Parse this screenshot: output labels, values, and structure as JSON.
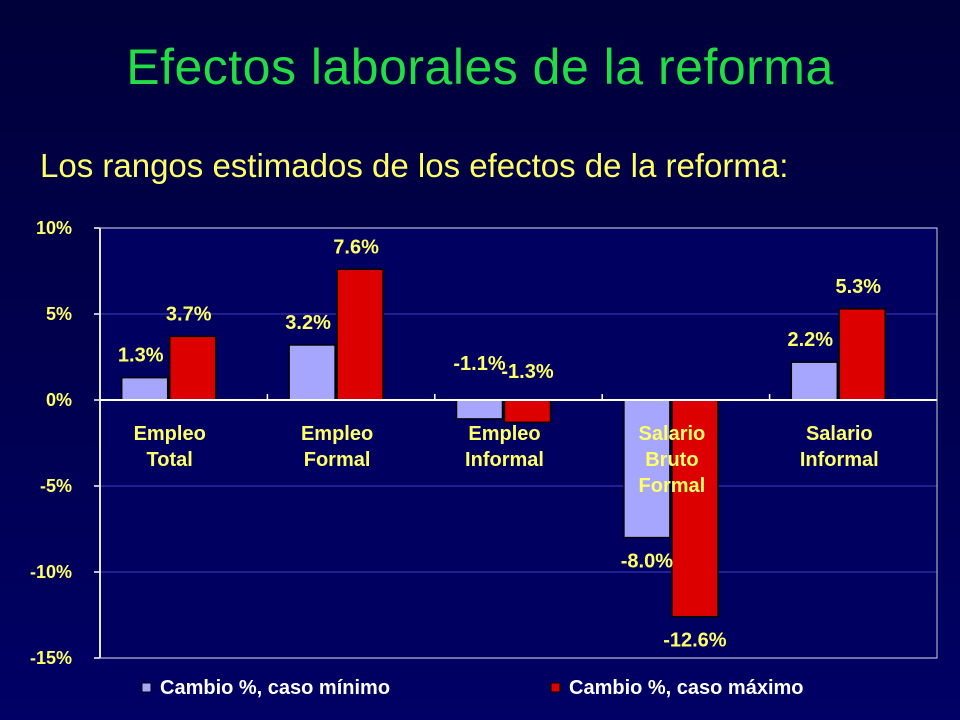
{
  "slide": {
    "title": "Efectos laborales de la reforma",
    "subtitle": "Los rangos estimados de los efectos de la reforma:"
  },
  "chart_data": {
    "type": "bar",
    "categories": [
      [
        "Empleo",
        "Total"
      ],
      [
        "Empleo",
        "Formal"
      ],
      [
        "Empleo",
        "Informal"
      ],
      [
        "Salario",
        "Bruto",
        "Formal"
      ],
      [
        "Salario",
        "Informal"
      ]
    ],
    "series": [
      {
        "name": "Cambio %, caso mínimo",
        "color": "#a6a6ff",
        "values": [
          1.3,
          3.2,
          -1.1,
          -8.0,
          2.2
        ],
        "labels": [
          "1.3%",
          "3.2%",
          "-1.1%",
          "-8.0%",
          "2.2%"
        ]
      },
      {
        "name": "Cambio %, caso máximo",
        "color": "#dd0000",
        "values": [
          3.7,
          7.6,
          -1.3,
          -12.6,
          5.3
        ],
        "labels": [
          "3.7%",
          "7.6%",
          "-1.3%",
          "-12.6%",
          "5.3%"
        ]
      }
    ],
    "ylim": [
      -15,
      10
    ],
    "yticks": [
      10,
      5,
      0,
      -5,
      -10,
      -15
    ],
    "ytick_labels": [
      "10%",
      "5%",
      "0%",
      "-5%",
      "-10%",
      "-15%"
    ],
    "grid": true,
    "legend": "bottom"
  }
}
